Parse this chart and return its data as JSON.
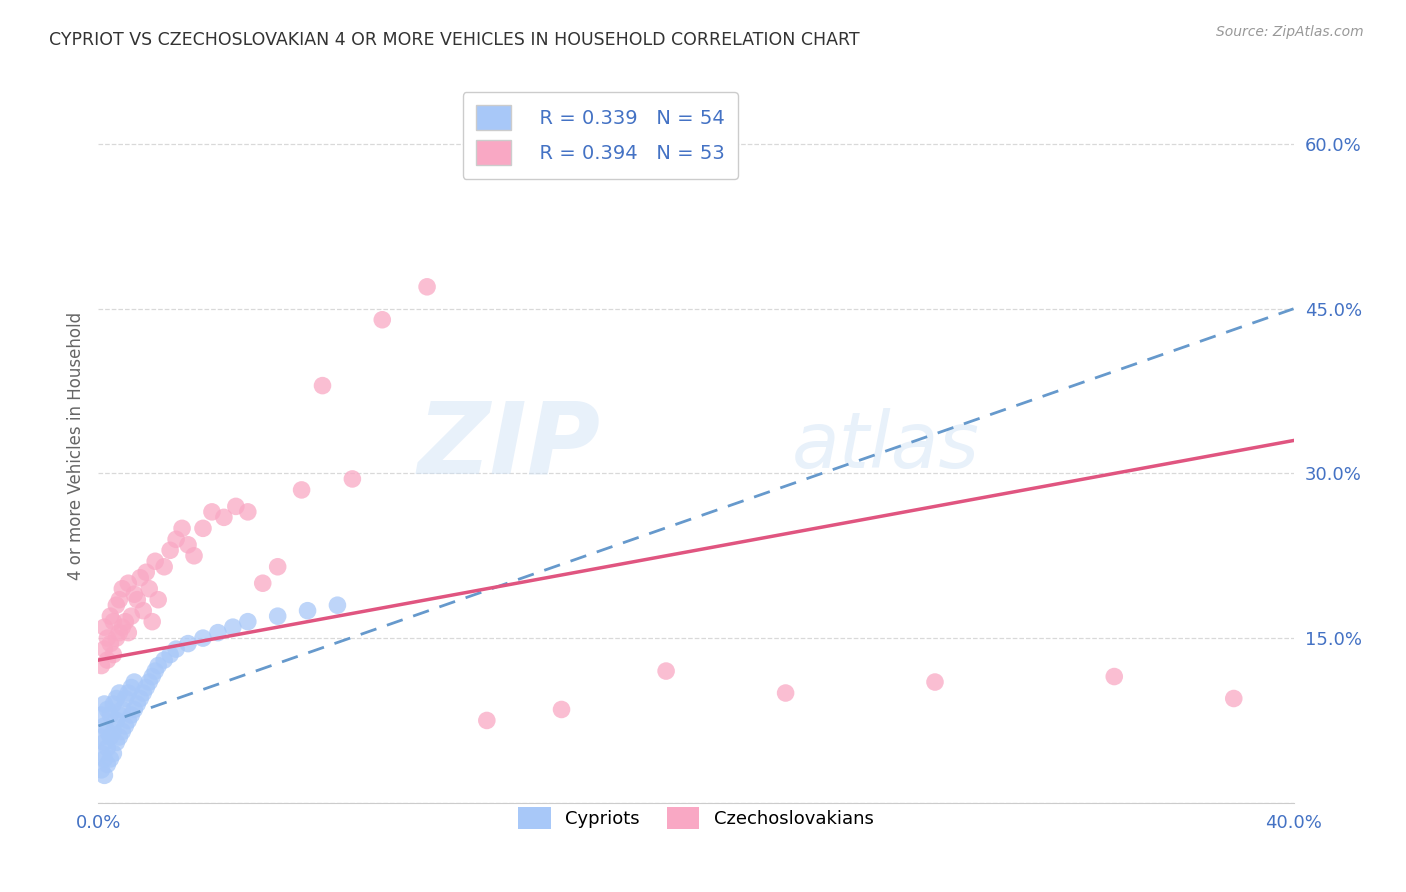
{
  "title": "CYPRIOT VS CZECHOSLOVAKIAN 4 OR MORE VEHICLES IN HOUSEHOLD CORRELATION CHART",
  "source": "Source: ZipAtlas.com",
  "ylabel": "4 or more Vehicles in Household",
  "xlim": [
    0.0,
    0.4
  ],
  "ylim": [
    0.0,
    0.65
  ],
  "ytick_vals": [
    0.0,
    0.15,
    0.3,
    0.45,
    0.6
  ],
  "xtick_vals": [
    0.0,
    0.1,
    0.2,
    0.3,
    0.4
  ],
  "cypriot_color": "#a8c8f8",
  "czechoslovakian_color": "#f9a8c4",
  "cypriot_line_color": "#6699cc",
  "czechoslovakian_line_color": "#e05580",
  "R_cypriot": 0.339,
  "N_cypriot": 54,
  "R_czechoslovakian": 0.394,
  "N_czechoslovakian": 53,
  "watermark_zip": "ZIP",
  "watermark_atlas": "atlas",
  "background_color": "#ffffff",
  "grid_color": "#d0d0d0",
  "cypriot_x": [
    0.001,
    0.001,
    0.001,
    0.001,
    0.002,
    0.002,
    0.002,
    0.002,
    0.002,
    0.003,
    0.003,
    0.003,
    0.003,
    0.004,
    0.004,
    0.004,
    0.005,
    0.005,
    0.005,
    0.006,
    0.006,
    0.006,
    0.007,
    0.007,
    0.007,
    0.008,
    0.008,
    0.009,
    0.009,
    0.01,
    0.01,
    0.011,
    0.011,
    0.012,
    0.012,
    0.013,
    0.014,
    0.015,
    0.016,
    0.017,
    0.018,
    0.019,
    0.02,
    0.022,
    0.024,
    0.026,
    0.03,
    0.035,
    0.04,
    0.045,
    0.05,
    0.06,
    0.07,
    0.08
  ],
  "cypriot_y": [
    0.03,
    0.045,
    0.06,
    0.08,
    0.025,
    0.04,
    0.055,
    0.07,
    0.09,
    0.035,
    0.05,
    0.065,
    0.085,
    0.04,
    0.06,
    0.08,
    0.045,
    0.065,
    0.09,
    0.055,
    0.075,
    0.095,
    0.06,
    0.08,
    0.1,
    0.065,
    0.085,
    0.07,
    0.095,
    0.075,
    0.1,
    0.08,
    0.105,
    0.085,
    0.11,
    0.09,
    0.095,
    0.1,
    0.105,
    0.11,
    0.115,
    0.12,
    0.125,
    0.13,
    0.135,
    0.14,
    0.145,
    0.15,
    0.155,
    0.16,
    0.165,
    0.17,
    0.175,
    0.18
  ],
  "czechoslovakian_x": [
    0.001,
    0.002,
    0.002,
    0.003,
    0.003,
    0.004,
    0.004,
    0.005,
    0.005,
    0.006,
    0.006,
    0.007,
    0.007,
    0.008,
    0.008,
    0.009,
    0.01,
    0.01,
    0.011,
    0.012,
    0.013,
    0.014,
    0.015,
    0.016,
    0.017,
    0.018,
    0.019,
    0.02,
    0.022,
    0.024,
    0.026,
    0.028,
    0.03,
    0.032,
    0.035,
    0.038,
    0.042,
    0.046,
    0.05,
    0.055,
    0.06,
    0.068,
    0.075,
    0.085,
    0.095,
    0.11,
    0.13,
    0.155,
    0.19,
    0.23,
    0.28,
    0.34,
    0.38
  ],
  "czechoslovakian_y": [
    0.125,
    0.14,
    0.16,
    0.13,
    0.15,
    0.145,
    0.17,
    0.135,
    0.165,
    0.15,
    0.18,
    0.155,
    0.185,
    0.16,
    0.195,
    0.165,
    0.155,
    0.2,
    0.17,
    0.19,
    0.185,
    0.205,
    0.175,
    0.21,
    0.195,
    0.165,
    0.22,
    0.185,
    0.215,
    0.23,
    0.24,
    0.25,
    0.235,
    0.225,
    0.25,
    0.265,
    0.26,
    0.27,
    0.265,
    0.2,
    0.215,
    0.285,
    0.38,
    0.295,
    0.44,
    0.47,
    0.075,
    0.085,
    0.12,
    0.1,
    0.11,
    0.115,
    0.095
  ],
  "cypriot_line_x0": 0.0,
  "cypriot_line_x1": 0.4,
  "cypriot_line_y0": 0.07,
  "cypriot_line_y1": 0.45,
  "czechoslovakian_line_x0": 0.0,
  "czechoslovakian_line_x1": 0.4,
  "czechoslovakian_line_y0": 0.13,
  "czechoslovakian_line_y1": 0.33
}
